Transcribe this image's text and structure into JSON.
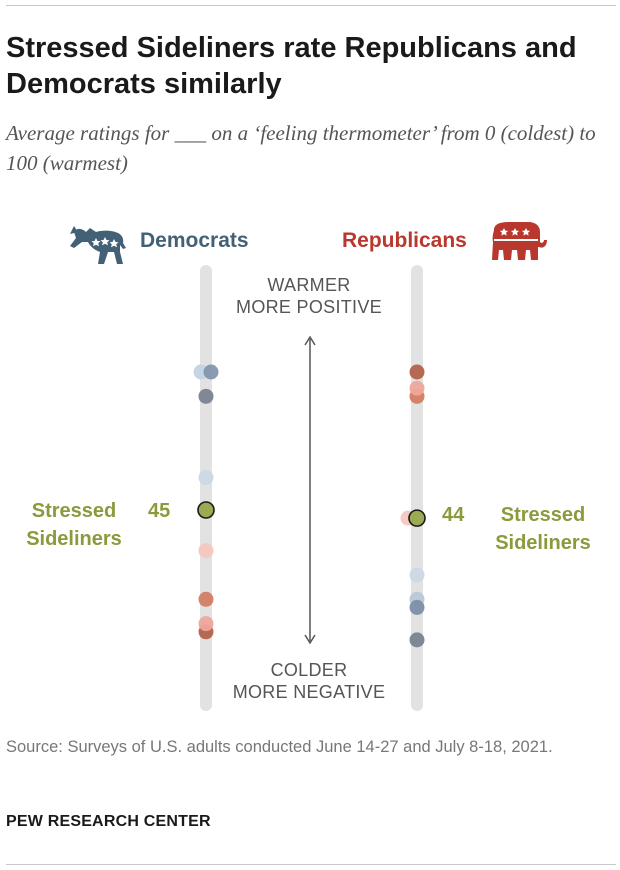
{
  "title": "Stressed Sideliners rate Republicans and Democrats similarly",
  "subtitle": "Average ratings for ___ on a ‘feeling thermometer’ from 0 (coldest) to 100 (warmest)",
  "axis_notes": {
    "top_line1": "WARMER",
    "top_line2": "MORE POSITIVE",
    "bottom_line1": "COLDER",
    "bottom_line2": "MORE NEGATIVE"
  },
  "icons": {
    "democrats": "donkey-icon",
    "republicans": "elephant-icon"
  },
  "colors": {
    "democrats": "#436176",
    "republicans": "#b9382e",
    "highlight": "#8a9a3c",
    "track": "#e2e2e2"
  },
  "chart_data": {
    "type": "scatter",
    "title": "Stressed Sideliners rate Republicans and Democrats similarly",
    "ylim": [
      0,
      100
    ],
    "columns": [
      {
        "name": "Democrats",
        "color": "#436176",
        "points": [
          {
            "value": 62,
            "color": "#c3d3e2"
          },
          {
            "value": 62,
            "color": "#8396ae"
          },
          {
            "value": 59,
            "color": "#7a8290"
          },
          {
            "value": 49,
            "color": "#cbd9e6"
          },
          {
            "value": 45,
            "color": "#9bab54",
            "highlight": true,
            "group": "Stressed Sideliners"
          },
          {
            "value": 40,
            "color": "#f3c7bf"
          },
          {
            "value": 34,
            "color": "#d27d62"
          },
          {
            "value": 30,
            "color": "#b3624a"
          },
          {
            "value": 31,
            "color": "#eda69a"
          }
        ]
      },
      {
        "name": "Republicans",
        "color": "#b9382e",
        "points": [
          {
            "value": 62,
            "color": "#b3624a"
          },
          {
            "value": 59,
            "color": "#d27d62"
          },
          {
            "value": 60,
            "color": "#eda69a"
          },
          {
            "value": 44,
            "color": "#f3c7bf",
            "offset": -1
          },
          {
            "value": 44,
            "color": "#9bab54",
            "highlight": true,
            "group": "Stressed Sideliners"
          },
          {
            "value": 37,
            "color": "#cbd9e6"
          },
          {
            "value": 34,
            "color": "#b7c8d9"
          },
          {
            "value": 33,
            "color": "#7b8fa6"
          },
          {
            "value": 29,
            "color": "#7a8290"
          }
        ]
      }
    ],
    "highlight_labels": {
      "group": "Stressed Sideliners",
      "democrats_value": "45",
      "republicans_value": "44"
    }
  },
  "source": "Source: Surveys of U.S. adults conducted June 14-27 and July 8-18, 2021.",
  "footer": "PEW RESEARCH CENTER"
}
